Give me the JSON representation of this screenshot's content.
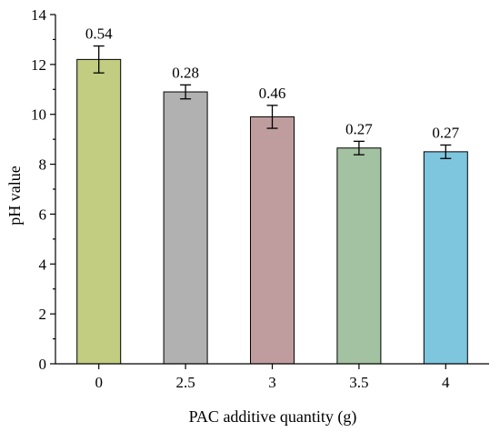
{
  "chart_data": {
    "type": "bar",
    "categories": [
      "0",
      "2.5",
      "3",
      "3.5",
      "4"
    ],
    "values": [
      12.2,
      10.9,
      9.9,
      8.65,
      8.5
    ],
    "errors": [
      0.54,
      0.28,
      0.46,
      0.27,
      0.27
    ],
    "data_labels": [
      "0.54",
      "0.28",
      "0.46",
      "0.27",
      "0.27"
    ],
    "colors": [
      "#c2cd82",
      "#b1b1b1",
      "#bf9d9e",
      "#a3c2a2",
      "#7ec5de"
    ],
    "title": "",
    "xlabel": "PAC additive quantity (g)",
    "ylabel": "pH value",
    "ylim": [
      0,
      14
    ],
    "yticks": [
      "0",
      "2",
      "4",
      "6",
      "8",
      "10",
      "12",
      "14"
    ],
    "grid": false,
    "legend": "none"
  }
}
